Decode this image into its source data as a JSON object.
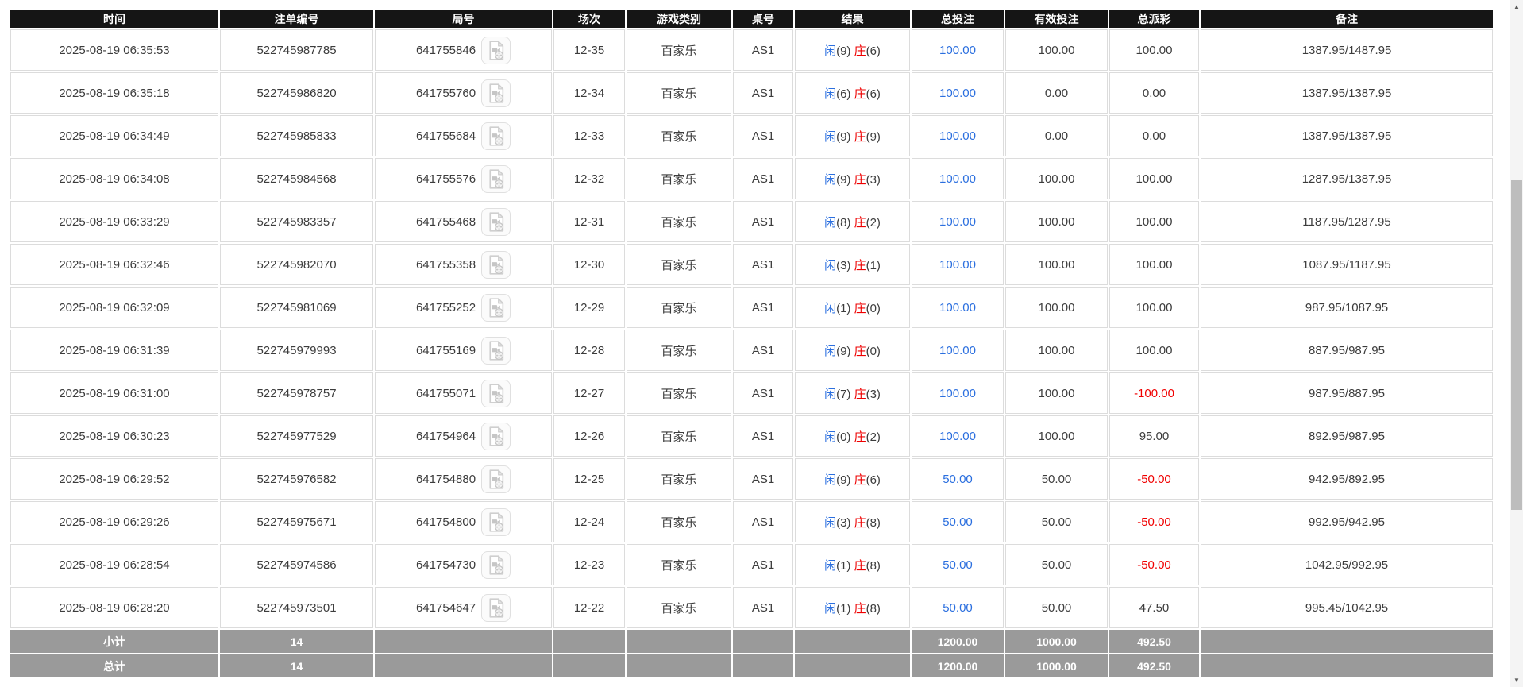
{
  "colors": {
    "header_bg": "#151515",
    "footer_bg": "#9a9a9a",
    "player_blue": "#2b6fdf",
    "banker_red": "#ee0000",
    "amount_blue": "#2b6fdf",
    "negative_red": "#f00000"
  },
  "icons": {
    "video_replay": "video-replay-icon",
    "scroll_up": "▲",
    "scroll_down": "▼"
  },
  "table": {
    "columns": [
      {
        "key": "time",
        "label": "时间"
      },
      {
        "key": "bet_id",
        "label": "注单编号"
      },
      {
        "key": "round_id",
        "label": "局号"
      },
      {
        "key": "session",
        "label": "场次"
      },
      {
        "key": "game_type",
        "label": "游戏类别"
      },
      {
        "key": "table_id",
        "label": "桌号"
      },
      {
        "key": "result",
        "label": "结果"
      },
      {
        "key": "total_bet",
        "label": "总投注"
      },
      {
        "key": "valid_bet",
        "label": "有效投注"
      },
      {
        "key": "total_payout",
        "label": "总派彩"
      },
      {
        "key": "remark",
        "label": "备注"
      }
    ],
    "result_labels": {
      "player": "闲",
      "banker": "庄"
    },
    "rows": [
      {
        "time": "2025-08-19 06:35:53",
        "bet_id": "522745987785",
        "round_id": "641755846",
        "session": "12-35",
        "game_type": "百家乐",
        "table_id": "AS1",
        "player": 9,
        "banker": 6,
        "total_bet": "100.00",
        "valid_bet": "100.00",
        "total_payout": "100.00",
        "remark": "1387.95/1487.95"
      },
      {
        "time": "2025-08-19 06:35:18",
        "bet_id": "522745986820",
        "round_id": "641755760",
        "session": "12-34",
        "game_type": "百家乐",
        "table_id": "AS1",
        "player": 6,
        "banker": 6,
        "total_bet": "100.00",
        "valid_bet": "0.00",
        "total_payout": "0.00",
        "remark": "1387.95/1387.95"
      },
      {
        "time": "2025-08-19 06:34:49",
        "bet_id": "522745985833",
        "round_id": "641755684",
        "session": "12-33",
        "game_type": "百家乐",
        "table_id": "AS1",
        "player": 9,
        "banker": 9,
        "total_bet": "100.00",
        "valid_bet": "0.00",
        "total_payout": "0.00",
        "remark": "1387.95/1387.95"
      },
      {
        "time": "2025-08-19 06:34:08",
        "bet_id": "522745984568",
        "round_id": "641755576",
        "session": "12-32",
        "game_type": "百家乐",
        "table_id": "AS1",
        "player": 9,
        "banker": 3,
        "total_bet": "100.00",
        "valid_bet": "100.00",
        "total_payout": "100.00",
        "remark": "1287.95/1387.95"
      },
      {
        "time": "2025-08-19 06:33:29",
        "bet_id": "522745983357",
        "round_id": "641755468",
        "session": "12-31",
        "game_type": "百家乐",
        "table_id": "AS1",
        "player": 8,
        "banker": 2,
        "total_bet": "100.00",
        "valid_bet": "100.00",
        "total_payout": "100.00",
        "remark": "1187.95/1287.95"
      },
      {
        "time": "2025-08-19 06:32:46",
        "bet_id": "522745982070",
        "round_id": "641755358",
        "session": "12-30",
        "game_type": "百家乐",
        "table_id": "AS1",
        "player": 3,
        "banker": 1,
        "total_bet": "100.00",
        "valid_bet": "100.00",
        "total_payout": "100.00",
        "remark": "1087.95/1187.95"
      },
      {
        "time": "2025-08-19 06:32:09",
        "bet_id": "522745981069",
        "round_id": "641755252",
        "session": "12-29",
        "game_type": "百家乐",
        "table_id": "AS1",
        "player": 1,
        "banker": 0,
        "total_bet": "100.00",
        "valid_bet": "100.00",
        "total_payout": "100.00",
        "remark": "987.95/1087.95"
      },
      {
        "time": "2025-08-19 06:31:39",
        "bet_id": "522745979993",
        "round_id": "641755169",
        "session": "12-28",
        "game_type": "百家乐",
        "table_id": "AS1",
        "player": 9,
        "banker": 0,
        "total_bet": "100.00",
        "valid_bet": "100.00",
        "total_payout": "100.00",
        "remark": "887.95/987.95"
      },
      {
        "time": "2025-08-19 06:31:00",
        "bet_id": "522745978757",
        "round_id": "641755071",
        "session": "12-27",
        "game_type": "百家乐",
        "table_id": "AS1",
        "player": 7,
        "banker": 3,
        "total_bet": "100.00",
        "valid_bet": "100.00",
        "total_payout": "-100.00",
        "remark": "987.95/887.95"
      },
      {
        "time": "2025-08-19 06:30:23",
        "bet_id": "522745977529",
        "round_id": "641754964",
        "session": "12-26",
        "game_type": "百家乐",
        "table_id": "AS1",
        "player": 0,
        "banker": 2,
        "total_bet": "100.00",
        "valid_bet": "100.00",
        "total_payout": "95.00",
        "remark": "892.95/987.95"
      },
      {
        "time": "2025-08-19 06:29:52",
        "bet_id": "522745976582",
        "round_id": "641754880",
        "session": "12-25",
        "game_type": "百家乐",
        "table_id": "AS1",
        "player": 9,
        "banker": 6,
        "total_bet": "50.00",
        "valid_bet": "50.00",
        "total_payout": "-50.00",
        "remark": "942.95/892.95"
      },
      {
        "time": "2025-08-19 06:29:26",
        "bet_id": "522745975671",
        "round_id": "641754800",
        "session": "12-24",
        "game_type": "百家乐",
        "table_id": "AS1",
        "player": 3,
        "banker": 8,
        "total_bet": "50.00",
        "valid_bet": "50.00",
        "total_payout": "-50.00",
        "remark": "992.95/942.95"
      },
      {
        "time": "2025-08-19 06:28:54",
        "bet_id": "522745974586",
        "round_id": "641754730",
        "session": "12-23",
        "game_type": "百家乐",
        "table_id": "AS1",
        "player": 1,
        "banker": 8,
        "total_bet": "50.00",
        "valid_bet": "50.00",
        "total_payout": "-50.00",
        "remark": "1042.95/992.95"
      },
      {
        "time": "2025-08-19 06:28:20",
        "bet_id": "522745973501",
        "round_id": "641754647",
        "session": "12-22",
        "game_type": "百家乐",
        "table_id": "AS1",
        "player": 1,
        "banker": 8,
        "total_bet": "50.00",
        "valid_bet": "50.00",
        "total_payout": "47.50",
        "remark": "995.45/1042.95"
      }
    ],
    "footer": [
      {
        "key": "subtotal",
        "label": "小计",
        "count": "14",
        "total_bet": "1200.00",
        "valid_bet": "1000.00",
        "total_payout": "492.50"
      },
      {
        "key": "total",
        "label": "总计",
        "count": "14",
        "total_bet": "1200.00",
        "valid_bet": "1000.00",
        "total_payout": "492.50"
      }
    ]
  }
}
